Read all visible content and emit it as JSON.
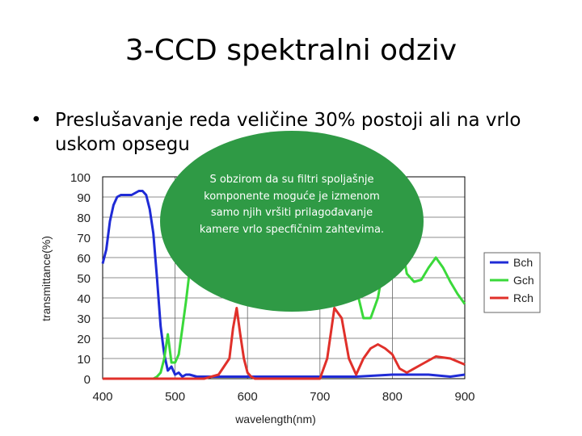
{
  "slide": {
    "title": "3-CCD spektralni odziv",
    "bullet_symbol": "•",
    "bullet_text": "Preslušavanje reda veličine 30% postoji ali na vrlo uskom opsegu",
    "callout_text": "S obzirom da su filtri spoljašnje komponente moguće je izmenom samo njih vršiti prilagođavanje kamere vrlo specfičnim zahtevima."
  },
  "chart_data": {
    "type": "line",
    "xlabel": "wavelength(nm)",
    "ylabel": "transmittance(%)",
    "xlim": [
      400,
      900
    ],
    "ylim": [
      0,
      100
    ],
    "xticks": [
      400,
      500,
      600,
      700,
      800,
      900
    ],
    "yticks": [
      0,
      10,
      20,
      30,
      40,
      50,
      60,
      70,
      80,
      90,
      100
    ],
    "grid": true,
    "legend_position": "right",
    "series": [
      {
        "name": "Bch",
        "color": "#1f2bd6",
        "x": [
          400,
          405,
          410,
          415,
          420,
          425,
          430,
          435,
          440,
          445,
          450,
          455,
          460,
          465,
          470,
          475,
          480,
          485,
          490,
          495,
          500,
          505,
          510,
          515,
          520,
          530,
          540,
          560,
          600,
          650,
          700,
          750,
          800,
          850,
          880,
          900
        ],
        "y": [
          57,
          64,
          78,
          86,
          90,
          91,
          91,
          91,
          91,
          92,
          93,
          93,
          91,
          84,
          72,
          50,
          26,
          12,
          4,
          6,
          2,
          3,
          1,
          2,
          2,
          1,
          1,
          1,
          1,
          1,
          1,
          1,
          2,
          2,
          1,
          2
        ]
      },
      {
        "name": "Gch",
        "color": "#3ad93a",
        "x": [
          400,
          450,
          470,
          475,
          480,
          485,
          490,
          495,
          500,
          505,
          510,
          515,
          520,
          525,
          530,
          535,
          540,
          560,
          600,
          650,
          700,
          740,
          750,
          760,
          770,
          780,
          790,
          800,
          810,
          815,
          820,
          830,
          840,
          850,
          860,
          870,
          880,
          890,
          900
        ],
        "y": [
          0,
          0,
          0,
          1,
          3,
          10,
          22,
          8,
          8,
          12,
          25,
          38,
          53,
          60,
          67,
          75,
          78,
          80,
          83,
          82,
          80,
          70,
          45,
          30,
          30,
          40,
          60,
          68,
          68,
          62,
          52,
          48,
          49,
          55,
          60,
          55,
          48,
          42,
          37
        ]
      },
      {
        "name": "Rch",
        "color": "#e0302a",
        "x": [
          400,
          500,
          540,
          560,
          575,
          580,
          585,
          590,
          595,
          600,
          605,
          610,
          620,
          640,
          660,
          680,
          700,
          710,
          720,
          730,
          740,
          750,
          760,
          770,
          780,
          790,
          800,
          810,
          820,
          840,
          860,
          880,
          900
        ],
        "y": [
          0,
          0,
          0,
          2,
          10,
          25,
          35,
          22,
          10,
          3,
          1,
          0,
          0,
          0,
          0,
          0,
          0,
          10,
          35,
          30,
          10,
          2,
          10,
          15,
          17,
          15,
          12,
          5,
          3,
          7,
          11,
          10,
          7
        ]
      }
    ]
  }
}
